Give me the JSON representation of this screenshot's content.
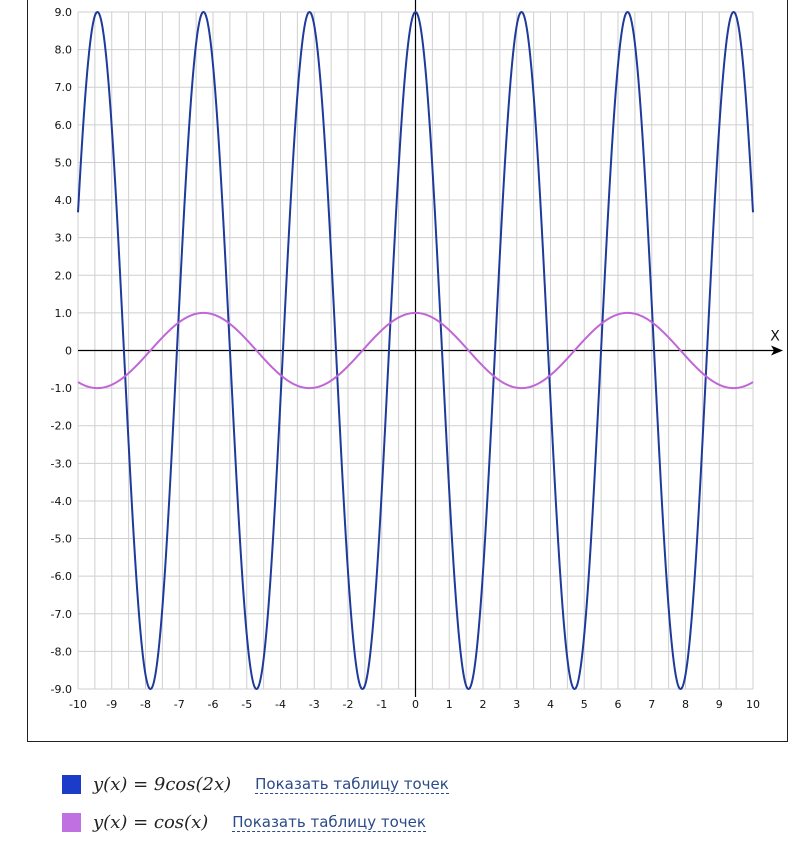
{
  "chart_data": {
    "type": "line",
    "title": "",
    "xlabel": "X",
    "ylabel": "",
    "xlim": [
      -10,
      10
    ],
    "ylim": [
      -9,
      9
    ],
    "grid": true,
    "x_ticks": [
      "-10",
      "-9",
      "-8",
      "-7",
      "-6",
      "-5",
      "-4",
      "-3",
      "-2",
      "-1",
      "0",
      "1",
      "2",
      "3",
      "4",
      "5",
      "6",
      "7",
      "8",
      "9",
      "10"
    ],
    "y_ticks": [
      "9.0",
      "8.0",
      "7.0",
      "6.0",
      "5.0",
      "4.0",
      "3.0",
      "2.0",
      "1.0",
      "0",
      "-1.0",
      "-2.0",
      "-3.0",
      "-4.0",
      "-5.0",
      "-6.0",
      "-7.0",
      "-8.0",
      "-9.0"
    ],
    "series": [
      {
        "function": "9*cos(2*x)",
        "color": "#1e3a9a"
      },
      {
        "function": "cos(x)",
        "color": "#c066d8"
      }
    ]
  },
  "legend": [
    {
      "formula": "y(x) = 9cos(2x)",
      "color": "#1b3cc9",
      "link": "Показать таблицу точек"
    },
    {
      "formula": "y(x) = cos(x)",
      "color": "#c070e0",
      "link": "Показать таблицу точек"
    }
  ]
}
